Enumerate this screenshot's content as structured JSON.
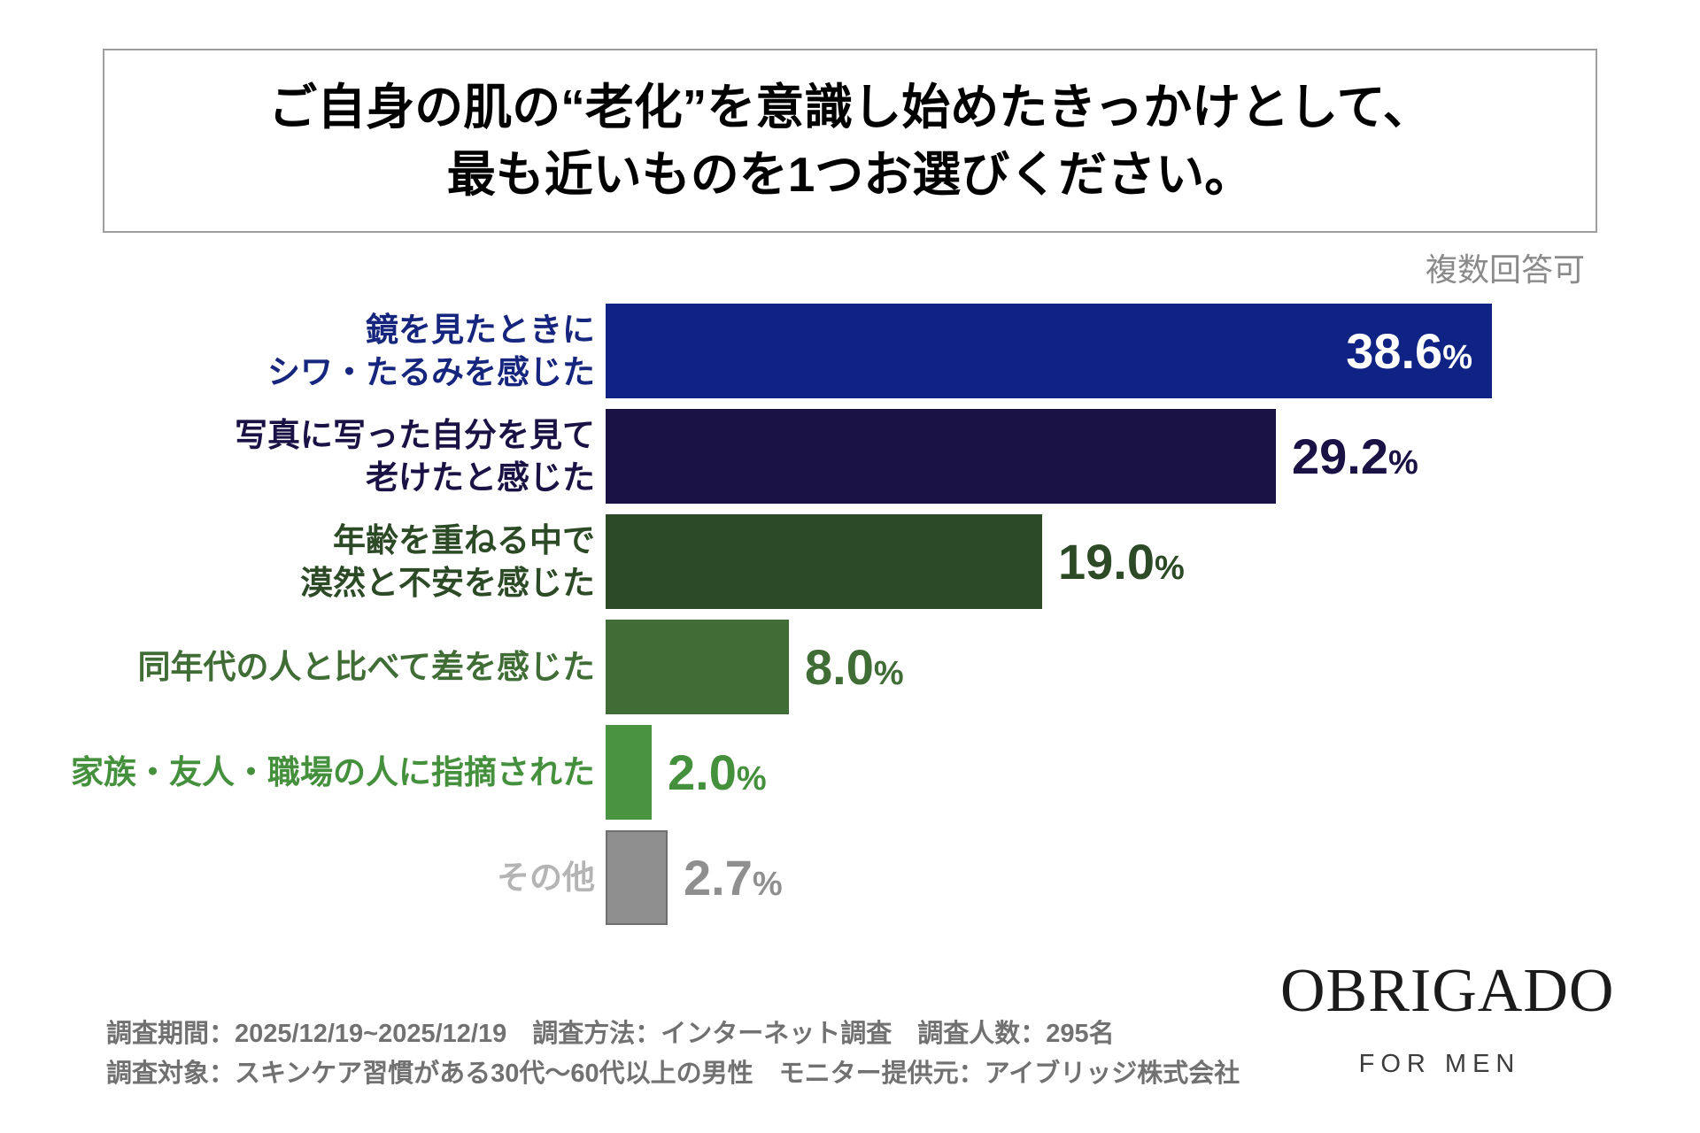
{
  "title": {
    "line1": "ご自身の肌の“老化”を意識し始めたきっかけとして、",
    "line2": "最も近いものを1つお選びください。"
  },
  "note": "複数回答可",
  "chart_data": {
    "type": "bar",
    "orientation": "horizontal",
    "title": "ご自身の肌の“老化”を意識し始めたきっかけとして、最も近いものを1つお選びください。",
    "annotation": "複数回答可",
    "unit": "%",
    "categories": [
      "鏡を見たときに\nシワ・たるみを感じた",
      "写真に写った自分を見て\n老けたと感じた",
      "年齢を重ねる中で\n漠然と不安を感じた",
      "同年代の人と比べて差を感じた",
      "家族・友人・職場の人に指摘された",
      "その他"
    ],
    "values": [
      38.6,
      29.2,
      19.0,
      8.0,
      2.0,
      2.7
    ],
    "xlim": [
      0,
      40
    ],
    "grid": false,
    "legend": false,
    "bar_colors": [
      "#0f2384",
      "#1a1145",
      "#2d4a26",
      "#406d36",
      "#4a9340",
      "#8f8f8f"
    ],
    "bar_border_colors": [
      null,
      null,
      null,
      null,
      null,
      "#6f6f6f"
    ],
    "label_colors": [
      "#16257d",
      "#1a1145",
      "#2d4a26",
      "#406d36",
      "#44903c",
      "#b4b4b4"
    ],
    "value_colors": [
      "#ffffff",
      "#1a1145",
      "#2d4a26",
      "#406d36",
      "#44903c",
      "#8f8f8f"
    ],
    "value_inside": [
      true,
      false,
      false,
      false,
      false,
      false
    ]
  },
  "footer": {
    "line1": "調査期間：2025/12/19~2025/12/19　調査方法：インターネット調査　調査人数：295名",
    "line2": "調査対象：スキンケア習慣がある30代～60代以上の男性　モニター提供元：アイブリッジ株式会社"
  },
  "logo": {
    "brand": "OBRIGADO",
    "tagline": "FOR MEN"
  }
}
